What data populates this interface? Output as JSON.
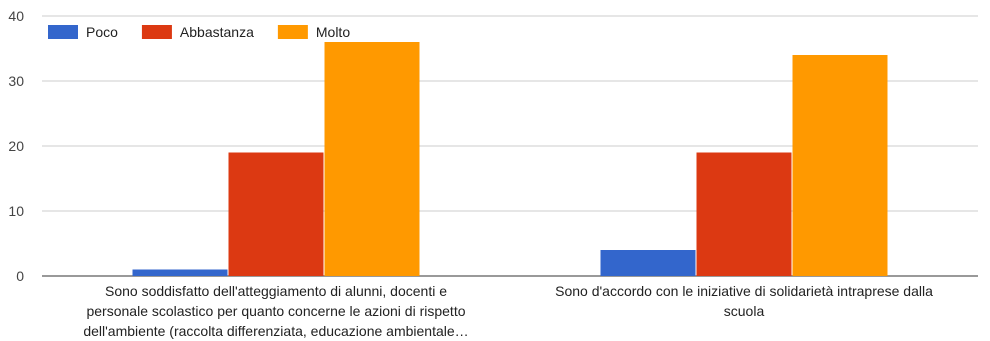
{
  "chart_data": {
    "type": "bar",
    "categories": [
      "Sono soddisfatto dell'atteggiamento di alunni, docenti e personale scolastico per quanto concerne le azioni di rispetto dell'ambiente (raccolta differenziata, educazione ambientale…",
      "Sono d'accordo con le iniziative di solidarietà intraprese dalla scuola"
    ],
    "category_lines": [
      [
        "Sono soddisfatto dell'atteggiamento di alunni, docenti e",
        "personale scolastico per quanto concerne le azioni di rispetto",
        "dell'ambiente (raccolta differenziata, educazione ambientale…"
      ],
      [
        "Sono d'accordo con le iniziative di solidarietà intraprese dalla",
        "scuola"
      ]
    ],
    "series": [
      {
        "name": "Poco",
        "color": "#3366cc",
        "values": [
          1,
          4
        ]
      },
      {
        "name": "Abbastanza",
        "color": "#dc3912",
        "values": [
          19,
          19
        ]
      },
      {
        "name": "Molto",
        "color": "#ff9900",
        "values": [
          36,
          34
        ]
      }
    ],
    "yticks": [
      "0",
      "10",
      "20",
      "30",
      "40"
    ],
    "ylim": [
      0,
      40
    ],
    "grid": true,
    "legend_position": "top-left"
  }
}
